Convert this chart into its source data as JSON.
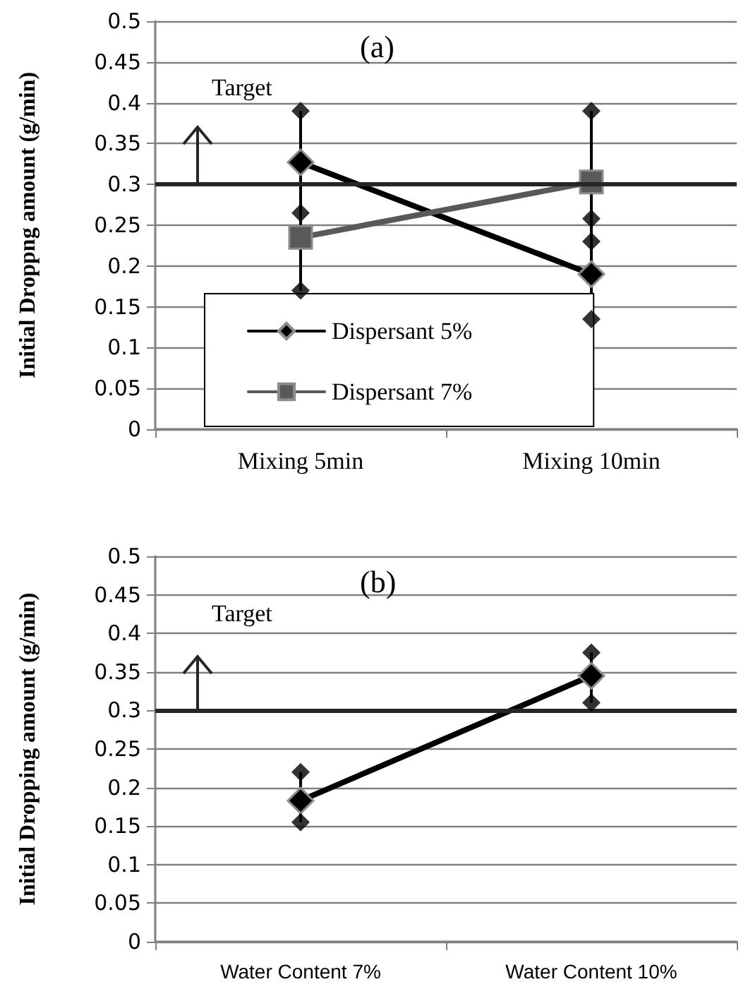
{
  "chart_data": [
    {
      "type": "line",
      "title": "(a)",
      "ylabel": "Initial Droppng amount (g/min)",
      "categories": [
        "Mixing 5min",
        "Mixing 10min"
      ],
      "series": [
        {
          "name": "Dispersant 5%",
          "color": "#000000",
          "marker": "diamond",
          "values": [
            0.327,
            0.19
          ],
          "errors": [
            [
              0.17,
              0.39
            ],
            [
              0.135,
              0.39
            ]
          ]
        },
        {
          "name": "Dispersant 7%",
          "color": "#595959",
          "marker": "square",
          "values": [
            0.235,
            0.303
          ]
        },
        {
          "type": "scatter",
          "color": "#000000",
          "marker": "diamond",
          "x": [
            "Mixing 5min",
            "Mixing 5min",
            "Mixing 5min",
            "Mixing 10min",
            "Mixing 10min",
            "Mixing 10min",
            "Mixing 10min"
          ],
          "values": [
            0.39,
            0.265,
            0.17,
            0.39,
            0.258,
            0.23,
            0.135
          ]
        }
      ],
      "ylim": [
        0,
        0.5
      ],
      "yticks": [
        0,
        0.05,
        0.1,
        0.15,
        0.2,
        0.25,
        0.3,
        0.35,
        0.4,
        0.45,
        0.5
      ],
      "grid": "y",
      "legend": "bottom left",
      "ref_lines": [
        {
          "axis": "y",
          "value": 0.3,
          "label": "Target",
          "color": "#262626"
        }
      ]
    },
    {
      "type": "line",
      "title": "(b)",
      "ylabel": "Initial Dropping amount (g/min)",
      "categories": [
        "Water Content 7%",
        "Water Content 10%"
      ],
      "series": [
        {
          "color": "#000000",
          "marker": "diamond",
          "values": [
            0.183,
            0.345
          ],
          "errors": [
            [
              0.155,
              0.22
            ],
            [
              0.31,
              0.375
            ]
          ]
        },
        {
          "type": "scatter",
          "color": "#000000",
          "marker": "diamond",
          "x": [
            "Water Content 7%",
            "Water Content 7%",
            "Water Content 10%",
            "Water Content 10%"
          ],
          "values": [
            0.22,
            0.155,
            0.375,
            0.31
          ]
        }
      ],
      "ylim": [
        0,
        0.5
      ],
      "yticks": [
        0,
        0.05,
        0.1,
        0.15,
        0.2,
        0.25,
        0.3,
        0.35,
        0.4,
        0.45,
        0.5
      ],
      "grid": "y",
      "legend": false,
      "ref_lines": [
        {
          "axis": "y",
          "value": 0.3,
          "label": "Target",
          "color": "#262626"
        }
      ]
    }
  ]
}
